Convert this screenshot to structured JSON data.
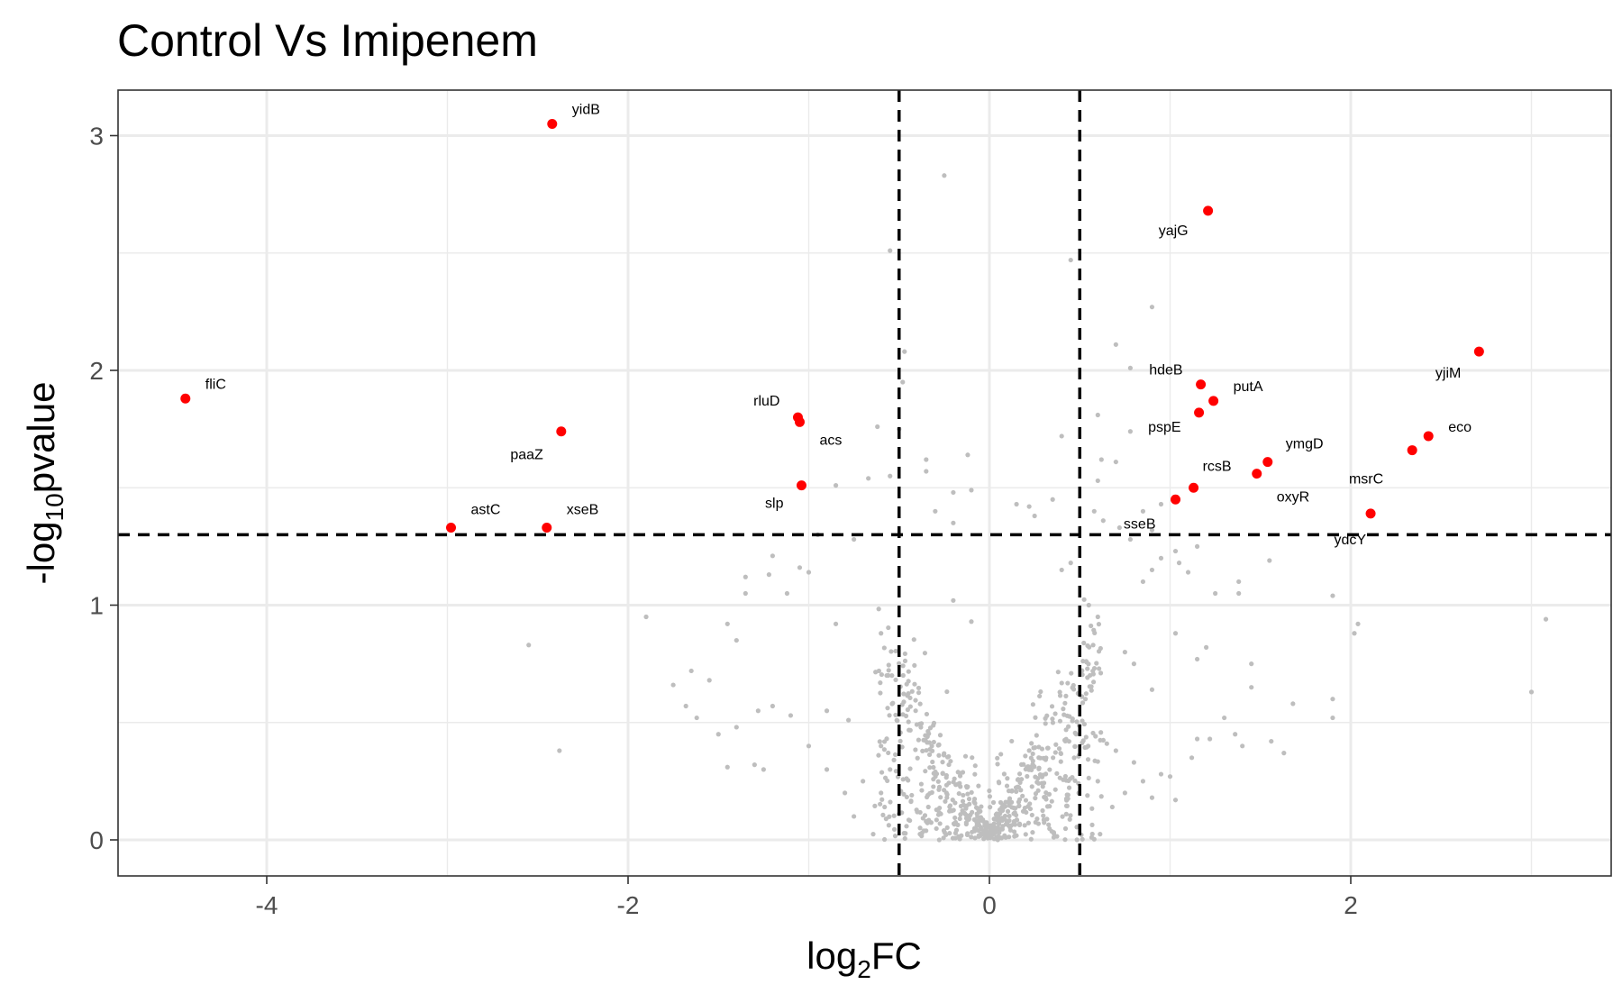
{
  "chart_data": {
    "type": "scatter",
    "title": "Control Vs Imipenem",
    "xlabel": {
      "main": "log",
      "sub": "2",
      "tail": "FC"
    },
    "ylabel": {
      "main": "-log",
      "sub": "10",
      "tail": "pvalue"
    },
    "xlim": [
      -4.8,
      3.4
    ],
    "ylim": [
      -0.15,
      3.2
    ],
    "x_ticks": [
      -4,
      -2,
      0,
      2
    ],
    "x_tick_labels": [
      "-4",
      "-2",
      "0",
      "2"
    ],
    "y_ticks": [
      0,
      1,
      2,
      3
    ],
    "y_tick_labels": [
      "0",
      "1",
      "2",
      "3"
    ],
    "grid": true,
    "thresholds": {
      "log2fc": [
        -0.5,
        0.5
      ],
      "neg_log10_p": 1.3
    },
    "colors": {
      "significant": "#ff0000",
      "background": "#bebebe",
      "threshold_line": "#000000",
      "grid": "#ebebeb",
      "border": "#333333"
    },
    "significant_points": [
      {
        "label": "yidB",
        "x": -2.42,
        "y": 3.05
      },
      {
        "label": "fliC",
        "x": -4.45,
        "y": 1.88
      },
      {
        "label": "paaZ",
        "x": -2.37,
        "y": 1.74
      },
      {
        "label": "astC",
        "x": -2.98,
        "y": 1.33
      },
      {
        "label": "xseB",
        "x": -2.45,
        "y": 1.33
      },
      {
        "label": "rluD",
        "x": -1.06,
        "y": 1.8
      },
      {
        "label": "acs",
        "x": -1.05,
        "y": 1.78
      },
      {
        "label": "slp",
        "x": -1.04,
        "y": 1.51
      },
      {
        "label": "yajG",
        "x": 1.21,
        "y": 2.68
      },
      {
        "label": "hdeB",
        "x": 1.17,
        "y": 1.94
      },
      {
        "label": "putA",
        "x": 1.24,
        "y": 1.87
      },
      {
        "label": "pspE",
        "x": 1.16,
        "y": 1.82
      },
      {
        "label": "ymgD",
        "x": 1.54,
        "y": 1.61
      },
      {
        "label": "oxyR",
        "x": 1.48,
        "y": 1.56
      },
      {
        "label": "rcsB",
        "x": 1.13,
        "y": 1.5
      },
      {
        "label": "sseB",
        "x": 1.03,
        "y": 1.45
      },
      {
        "label": "yjiM",
        "x": 2.71,
        "y": 2.08
      },
      {
        "label": "eco",
        "x": 2.43,
        "y": 1.72
      },
      {
        "label": "msrC",
        "x": 2.34,
        "y": 1.66
      },
      {
        "label": "ydcY",
        "x": 2.11,
        "y": 1.39
      }
    ],
    "background_points": [
      [
        -0.25,
        2.83
      ],
      [
        -0.55,
        2.51
      ],
      [
        0.45,
        2.47
      ],
      [
        0.9,
        2.27
      ],
      [
        0.7,
        2.11
      ],
      [
        -0.47,
        2.08
      ],
      [
        0.78,
        2.01
      ],
      [
        -0.48,
        1.95
      ],
      [
        0.6,
        1.81
      ],
      [
        -0.5,
        1.75
      ],
      [
        -0.62,
        1.76
      ],
      [
        0.4,
        1.72
      ],
      [
        0.78,
        1.74
      ],
      [
        -0.12,
        1.64
      ],
      [
        -0.35,
        1.62
      ],
      [
        0.62,
        1.62
      ],
      [
        0.7,
        1.61
      ],
      [
        -0.35,
        1.57
      ],
      [
        -0.55,
        1.55
      ],
      [
        -0.2,
        1.48
      ],
      [
        -0.1,
        1.49
      ],
      [
        0.6,
        1.53
      ],
      [
        -0.67,
        1.54
      ],
      [
        -0.85,
        1.51
      ],
      [
        0.15,
        1.43
      ],
      [
        0.22,
        1.42
      ],
      [
        0.35,
        1.45
      ],
      [
        -0.3,
        1.4
      ],
      [
        -0.2,
        1.35
      ],
      [
        0.25,
        1.38
      ],
      [
        0.58,
        1.4
      ],
      [
        0.63,
        1.36
      ],
      [
        0.72,
        1.33
      ],
      [
        0.85,
        1.4
      ],
      [
        0.95,
        1.43
      ],
      [
        -0.75,
        1.28
      ],
      [
        -0.95,
        1.3
      ],
      [
        0.78,
        1.28
      ],
      [
        0.9,
        1.32
      ],
      [
        1.03,
        1.23
      ],
      [
        1.15,
        1.25
      ],
      [
        -1.2,
        1.21
      ],
      [
        -1.05,
        1.16
      ],
      [
        -1.22,
        1.13
      ],
      [
        -1.35,
        1.12
      ],
      [
        -1.35,
        1.05
      ],
      [
        -1.0,
        1.14
      ],
      [
        -1.12,
        1.05
      ],
      [
        -1.9,
        0.95
      ],
      [
        -1.45,
        0.92
      ],
      [
        -1.4,
        0.85
      ],
      [
        -0.85,
        0.92
      ],
      [
        -0.6,
        0.88
      ],
      [
        -0.2,
        1.02
      ],
      [
        -0.1,
        0.93
      ],
      [
        0.4,
        1.15
      ],
      [
        0.45,
        1.18
      ],
      [
        0.55,
        1.0
      ],
      [
        0.6,
        0.95
      ],
      [
        0.85,
        1.1
      ],
      [
        0.9,
        1.15
      ],
      [
        0.95,
        1.2
      ],
      [
        1.05,
        1.18
      ],
      [
        1.1,
        1.14
      ],
      [
        1.25,
        1.05
      ],
      [
        1.38,
        1.1
      ],
      [
        1.38,
        1.05
      ],
      [
        1.55,
        1.19
      ],
      [
        1.9,
        1.04
      ],
      [
        1.03,
        0.88
      ],
      [
        1.2,
        0.82
      ],
      [
        1.15,
        0.77
      ],
      [
        1.45,
        0.75
      ],
      [
        1.45,
        0.65
      ],
      [
        1.68,
        0.58
      ],
      [
        2.04,
        0.92
      ],
      [
        2.02,
        0.88
      ],
      [
        1.9,
        0.6
      ],
      [
        1.9,
        0.52
      ],
      [
        3.0,
        0.63
      ],
      [
        3.08,
        0.94
      ],
      [
        0.75,
        0.8
      ],
      [
        0.8,
        0.75
      ],
      [
        0.9,
        0.64
      ],
      [
        -1.75,
        0.66
      ],
      [
        -1.68,
        0.57
      ],
      [
        -1.62,
        0.52
      ],
      [
        -1.65,
        0.72
      ],
      [
        -1.55,
        0.68
      ],
      [
        -1.5,
        0.45
      ],
      [
        -1.28,
        0.55
      ],
      [
        -1.2,
        0.57
      ],
      [
        -1.1,
        0.53
      ],
      [
        -0.9,
        0.55
      ],
      [
        -0.78,
        0.51
      ],
      [
        -1.0,
        0.4
      ],
      [
        -0.9,
        0.3
      ],
      [
        -1.3,
        0.32
      ],
      [
        -1.25,
        0.3
      ],
      [
        -1.45,
        0.31
      ],
      [
        -1.4,
        0.48
      ],
      [
        -2.55,
        0.83
      ],
      [
        -2.38,
        0.38
      ],
      [
        1.15,
        0.43
      ],
      [
        1.4,
        0.4
      ],
      [
        1.22,
        0.43
      ],
      [
        1.12,
        0.35
      ],
      [
        1.3,
        0.52
      ],
      [
        1.36,
        0.45
      ],
      [
        1.56,
        0.42
      ],
      [
        1.63,
        0.37
      ],
      [
        0.65,
        0.41
      ],
      [
        0.7,
        0.38
      ],
      [
        0.8,
        0.33
      ],
      [
        0.85,
        0.25
      ],
      [
        0.95,
        0.28
      ],
      [
        1.0,
        0.27
      ],
      [
        0.6,
        0.25
      ],
      [
        0.75,
        0.2
      ],
      [
        0.9,
        0.18
      ],
      [
        1.03,
        0.17
      ],
      [
        0.68,
        0.14
      ],
      [
        -0.6,
        0.4
      ],
      [
        -0.55,
        0.3
      ],
      [
        -0.6,
        0.2
      ],
      [
        -0.58,
        0.14
      ],
      [
        -0.75,
        0.1
      ],
      [
        -0.8,
        0.2
      ],
      [
        -0.7,
        0.25
      ]
    ]
  }
}
